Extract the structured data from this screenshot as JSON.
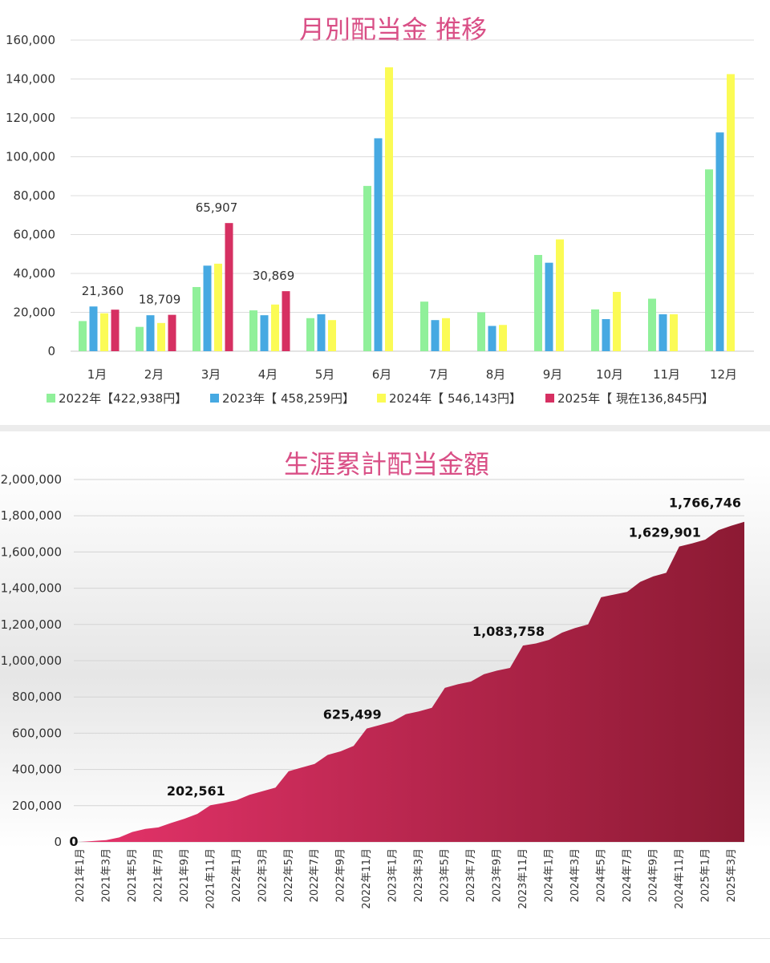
{
  "chart_data": [
    {
      "type": "bar",
      "title": "月別配当金 推移",
      "categories": [
        "1月",
        "2月",
        "3月",
        "4月",
        "5月",
        "6月",
        "7月",
        "8月",
        "9月",
        "10月",
        "11月",
        "12月"
      ],
      "ylim": [
        0,
        160000
      ],
      "yticks": [
        "0",
        "20,000",
        "40,000",
        "60,000",
        "80,000",
        "100,000",
        "120,000",
        "140,000",
        "160,000"
      ],
      "grid": true,
      "legend_position": "bottom",
      "series": [
        {
          "name": "2022年【422,938円】",
          "color": "#90f09a",
          "values": [
            15500,
            12500,
            33000,
            21000,
            17000,
            85000,
            25500,
            20000,
            49500,
            21500,
            27000,
            93500
          ]
        },
        {
          "name": "2023年【 458,259円】",
          "color": "#46a9e2",
          "values": [
            23000,
            18500,
            44000,
            18500,
            19000,
            109500,
            16000,
            13000,
            45500,
            16500,
            19000,
            112500
          ]
        },
        {
          "name": "2024年【 546,143円】",
          "color": "#fbfb55",
          "values": [
            19500,
            14500,
            45000,
            24000,
            16000,
            146000,
            17000,
            13500,
            57500,
            30500,
            19000,
            142500
          ]
        },
        {
          "name": "2025年【 現在136,845円】",
          "color": "#d63062",
          "values": [
            21360,
            18709,
            65907,
            30869,
            null,
            null,
            null,
            null,
            null,
            null,
            null,
            null
          ]
        }
      ],
      "data_labels": [
        {
          "category": "1月",
          "text": "21,360"
        },
        {
          "category": "2月",
          "text": "18,709"
        },
        {
          "category": "3月",
          "text": "65,907"
        },
        {
          "category": "4月",
          "text": "30,869"
        }
      ]
    },
    {
      "type": "area",
      "title": "生涯累計配当金額",
      "ylim": [
        0,
        2000000
      ],
      "yticks": [
        "0",
        "200,000",
        "400,000",
        "600,000",
        "800,000",
        "1,000,000",
        "1,200,000",
        "1,400,000",
        "1,600,000",
        "1,800,000",
        "2,000,000"
      ],
      "grid": true,
      "color_start": "#e5336a",
      "color_end": "#8c1a33",
      "x_tick_labels": [
        "2021年1月",
        "2021年3月",
        "2021年5月",
        "2021年7月",
        "2021年9月",
        "2021年11月",
        "2022年1月",
        "2022年3月",
        "2022年5月",
        "2022年7月",
        "2022年9月",
        "2022年11月",
        "2023年1月",
        "2023年3月",
        "2023年5月",
        "2023年7月",
        "2023年9月",
        "2023年11月",
        "2024年1月",
        "2024年3月",
        "2024年5月",
        "2024年7月",
        "2024年9月",
        "2024年11月",
        "2025年1月",
        "2025年3月"
      ],
      "x": [
        "2021-01",
        "2021-02",
        "2021-03",
        "2021-04",
        "2021-05",
        "2021-06",
        "2021-07",
        "2021-08",
        "2021-09",
        "2021-10",
        "2021-11",
        "2021-12",
        "2022-01",
        "2022-02",
        "2022-03",
        "2022-04",
        "2022-05",
        "2022-06",
        "2022-07",
        "2022-08",
        "2022-09",
        "2022-10",
        "2022-11",
        "2022-12",
        "2023-01",
        "2023-02",
        "2023-03",
        "2023-04",
        "2023-05",
        "2023-06",
        "2023-07",
        "2023-08",
        "2023-09",
        "2023-10",
        "2023-11",
        "2023-12",
        "2024-01",
        "2024-02",
        "2024-03",
        "2024-04",
        "2024-05",
        "2024-06",
        "2024-07",
        "2024-08",
        "2024-09",
        "2024-10",
        "2024-11",
        "2024-12",
        "2025-01",
        "2025-02",
        "2025-03",
        "2025-04"
      ],
      "values": [
        0,
        5000,
        10000,
        25000,
        55000,
        72000,
        80000,
        105000,
        128000,
        155000,
        202561,
        215000,
        230000,
        260000,
        280000,
        300000,
        390000,
        410000,
        430000,
        480000,
        500000,
        530000,
        625499,
        645000,
        665000,
        705000,
        720000,
        740000,
        850000,
        870000,
        885000,
        925000,
        945000,
        960000,
        1083758,
        1095000,
        1115000,
        1155000,
        1180000,
        1200000,
        1350000,
        1365000,
        1380000,
        1435000,
        1465000,
        1485000,
        1629901,
        1648000,
        1668000,
        1720000,
        1745000,
        1766746
      ],
      "data_labels": [
        {
          "x": "2021-01",
          "text": "0"
        },
        {
          "x": "2021-11",
          "text": "202,561"
        },
        {
          "x": "2022-11",
          "text": "625,499"
        },
        {
          "x": "2023-11",
          "text": "1,083,758"
        },
        {
          "x": "2024-11",
          "text": "1,629,901"
        },
        {
          "x": "2025-04",
          "text": "1,766,746"
        }
      ]
    }
  ]
}
